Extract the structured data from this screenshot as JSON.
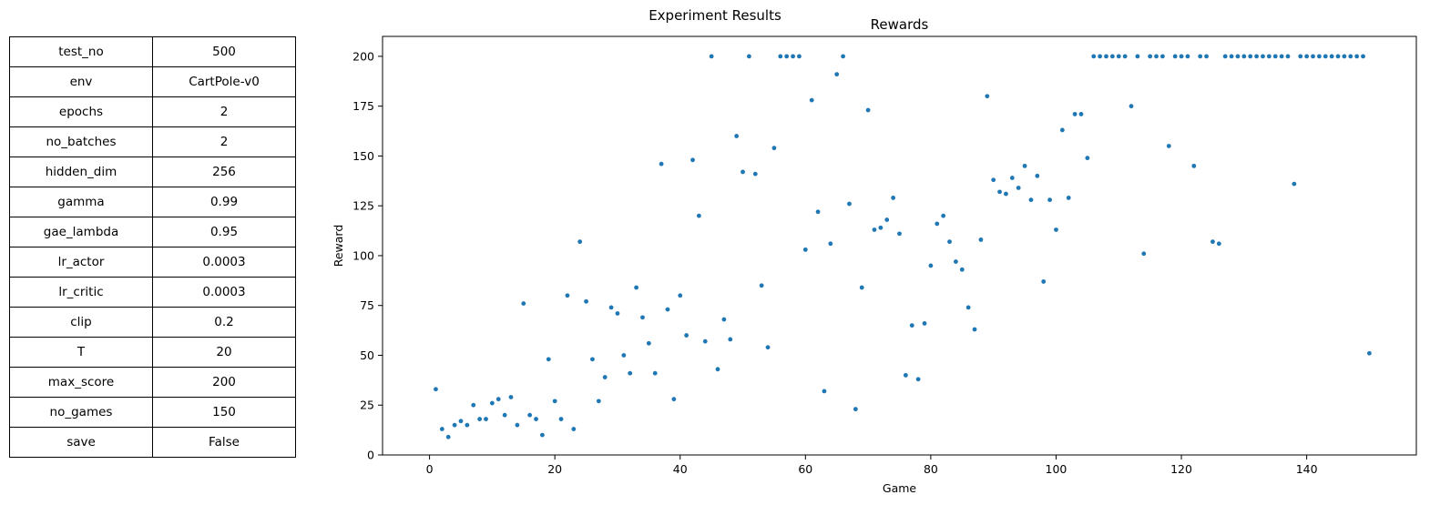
{
  "figure_title": "Experiment Results",
  "params_table": [
    [
      "test_no",
      "500"
    ],
    [
      "env",
      "CartPole-v0"
    ],
    [
      "epochs",
      "2"
    ],
    [
      "no_batches",
      "2"
    ],
    [
      "hidden_dim",
      "256"
    ],
    [
      "gamma",
      "0.99"
    ],
    [
      "gae_lambda",
      "0.95"
    ],
    [
      "lr_actor",
      "0.0003"
    ],
    [
      "lr_critic",
      "0.0003"
    ],
    [
      "clip",
      "0.2"
    ],
    [
      "T",
      "20"
    ],
    [
      "max_score",
      "200"
    ],
    [
      "no_games",
      "150"
    ],
    [
      "save",
      "False"
    ]
  ],
  "chart_data": {
    "type": "scatter",
    "title": "Rewards",
    "xlabel": "Game",
    "ylabel": "Reward",
    "xlim": [
      -7.5,
      157.5
    ],
    "ylim": [
      0,
      210
    ],
    "xticks": [
      0,
      20,
      40,
      60,
      80,
      100,
      120,
      140
    ],
    "yticks": [
      0,
      25,
      50,
      75,
      100,
      125,
      150,
      175,
      200
    ],
    "grid": false,
    "marker_color": "#1f77b4",
    "x": [
      1,
      2,
      3,
      4,
      5,
      6,
      7,
      8,
      9,
      10,
      11,
      12,
      13,
      14,
      15,
      16,
      17,
      18,
      19,
      20,
      21,
      22,
      23,
      24,
      25,
      26,
      27,
      28,
      29,
      30,
      31,
      32,
      33,
      34,
      35,
      36,
      37,
      38,
      39,
      40,
      41,
      42,
      43,
      44,
      45,
      46,
      47,
      48,
      49,
      50,
      51,
      52,
      53,
      54,
      55,
      56,
      57,
      58,
      59,
      60,
      61,
      62,
      63,
      64,
      65,
      66,
      67,
      68,
      69,
      70,
      71,
      72,
      73,
      74,
      75,
      76,
      77,
      78,
      79,
      80,
      81,
      82,
      83,
      84,
      85,
      86,
      87,
      88,
      89,
      90,
      91,
      92,
      93,
      94,
      95,
      96,
      97,
      98,
      99,
      100,
      101,
      102,
      103,
      104,
      105,
      106,
      107,
      108,
      109,
      110,
      111,
      112,
      113,
      114,
      115,
      116,
      117,
      118,
      119,
      120,
      121,
      122,
      123,
      124,
      125,
      126,
      127,
      128,
      129,
      130,
      131,
      132,
      133,
      134,
      135,
      136,
      137,
      138,
      139,
      140,
      141,
      142,
      143,
      144,
      145,
      146,
      147,
      148,
      149,
      150
    ],
    "y": [
      33,
      13,
      9,
      15,
      17,
      15,
      25,
      18,
      18,
      26,
      28,
      20,
      29,
      15,
      76,
      20,
      18,
      10,
      48,
      27,
      18,
      80,
      13,
      107,
      77,
      48,
      27,
      39,
      74,
      71,
      50,
      41,
      84,
      69,
      56,
      41,
      146,
      73,
      28,
      80,
      60,
      148,
      120,
      57,
      200,
      43,
      68,
      58,
      160,
      142,
      200,
      141,
      85,
      54,
      154,
      200,
      200,
      200,
      200,
      103,
      178,
      122,
      32,
      106,
      191,
      200,
      126,
      23,
      84,
      173,
      113,
      114,
      118,
      129,
      111,
      40,
      65,
      38,
      66,
      95,
      116,
      120,
      107,
      97,
      93,
      74,
      63,
      108,
      180,
      138,
      132,
      131,
      139,
      134,
      145,
      128,
      140,
      87,
      128,
      113,
      163,
      129,
      171,
      171,
      149,
      200,
      200,
      200,
      200,
      200,
      200,
      175,
      200,
      101,
      200,
      200,
      200,
      155,
      200,
      200,
      200,
      145,
      200,
      200,
      107,
      106,
      200,
      200,
      200,
      200,
      200,
      200,
      200,
      200,
      200,
      200,
      200,
      136,
      200,
      200,
      200,
      200,
      200,
      200,
      200,
      200,
      200,
      200,
      200,
      51
    ]
  }
}
